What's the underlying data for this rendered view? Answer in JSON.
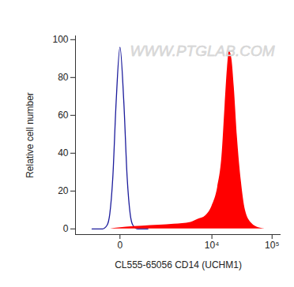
{
  "chart_data": {
    "type": "area",
    "xlabel": "CL555-65056 CD14 (UCHM1)",
    "ylabel": "Relative cell number",
    "annotations": [
      "WWW.PTGLAB.COM"
    ],
    "log": "x",
    "xlim": [
      -1400,
      140000
    ],
    "xticks": [
      0,
      {
        "value": 10000,
        "label": "10⁴"
      },
      {
        "value": 100000,
        "label": "10⁵"
      }
    ],
    "ylim": [
      -3,
      102
    ],
    "yticks": [
      0,
      20,
      40,
      60,
      80,
      100
    ],
    "grid": false,
    "series": [
      {
        "type": "line",
        "color": "#1c1c9c",
        "x": [
          -600,
          -400,
          -300,
          -200,
          -150,
          -100,
          -50,
          0,
          50,
          100,
          150,
          200,
          300,
          400,
          600
        ],
        "values": [
          0,
          0,
          0,
          2,
          8,
          27,
          67,
          96,
          67,
          27,
          8,
          2,
          0,
          0,
          0
        ]
      },
      {
        "type": "area",
        "color": "#ff0000",
        "x": [
          -139,
          -19,
          87,
          422,
          1085,
          2150,
          4330,
          5700,
          7850,
          10000,
          12500,
          14700,
          16600,
          18200,
          19600,
          21500,
          23600,
          26700,
          31000,
          36100,
          45800,
          61800,
          76200
        ],
        "values": [
          0,
          0.5,
          1,
          1.5,
          2,
          2.5,
          3.5,
          5,
          7,
          12,
          22,
          38,
          65,
          85,
          94,
          90,
          75,
          48,
          25,
          10,
          3,
          0.5,
          0
        ]
      }
    ]
  }
}
